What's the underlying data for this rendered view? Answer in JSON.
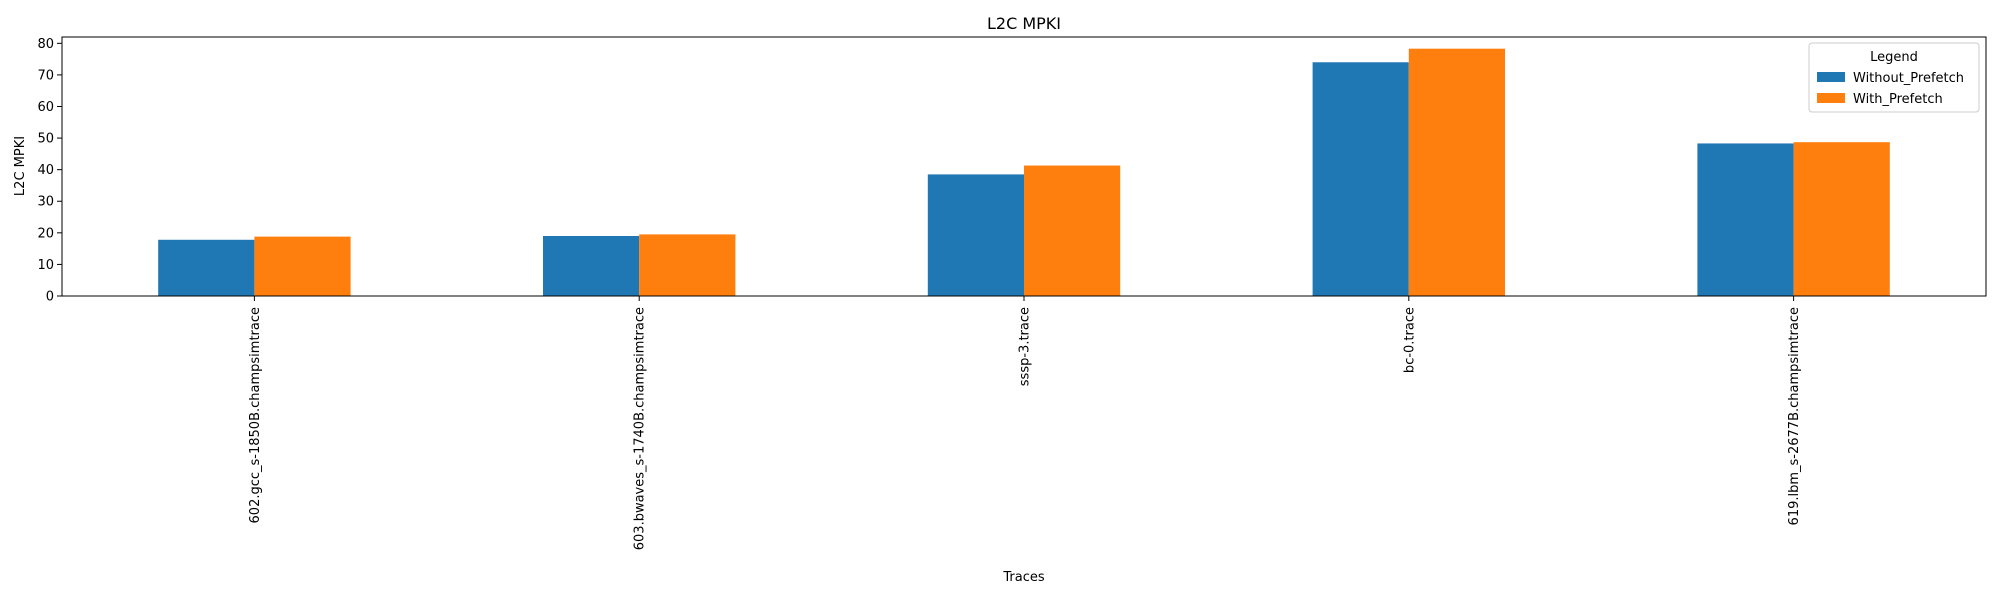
{
  "chart_data": {
    "type": "bar",
    "title": "L2C MPKI",
    "xlabel": "Traces",
    "ylabel": "L2C MPKI",
    "ylim": [
      0,
      82
    ],
    "yticks": [
      0,
      10,
      20,
      30,
      40,
      50,
      60,
      70,
      80
    ],
    "grid": false,
    "legend": {
      "title": "Legend",
      "placement": "top-right"
    },
    "categories": [
      "602.gcc_s-1850B.champsimtrace",
      "603.bwaves_s-1740B.champsimtrace",
      "sssp-3.trace",
      "bc-0.trace",
      "619.lbm_s-2677B.champsimtrace"
    ],
    "series": [
      {
        "name": "Without_Prefetch",
        "color": "#1f77b4",
        "values": [
          17.8,
          19.0,
          38.5,
          74.0,
          48.3
        ]
      },
      {
        "name": "With_Prefetch",
        "color": "#ff7f0e",
        "values": [
          18.8,
          19.5,
          41.3,
          78.3,
          48.7
        ]
      }
    ]
  }
}
